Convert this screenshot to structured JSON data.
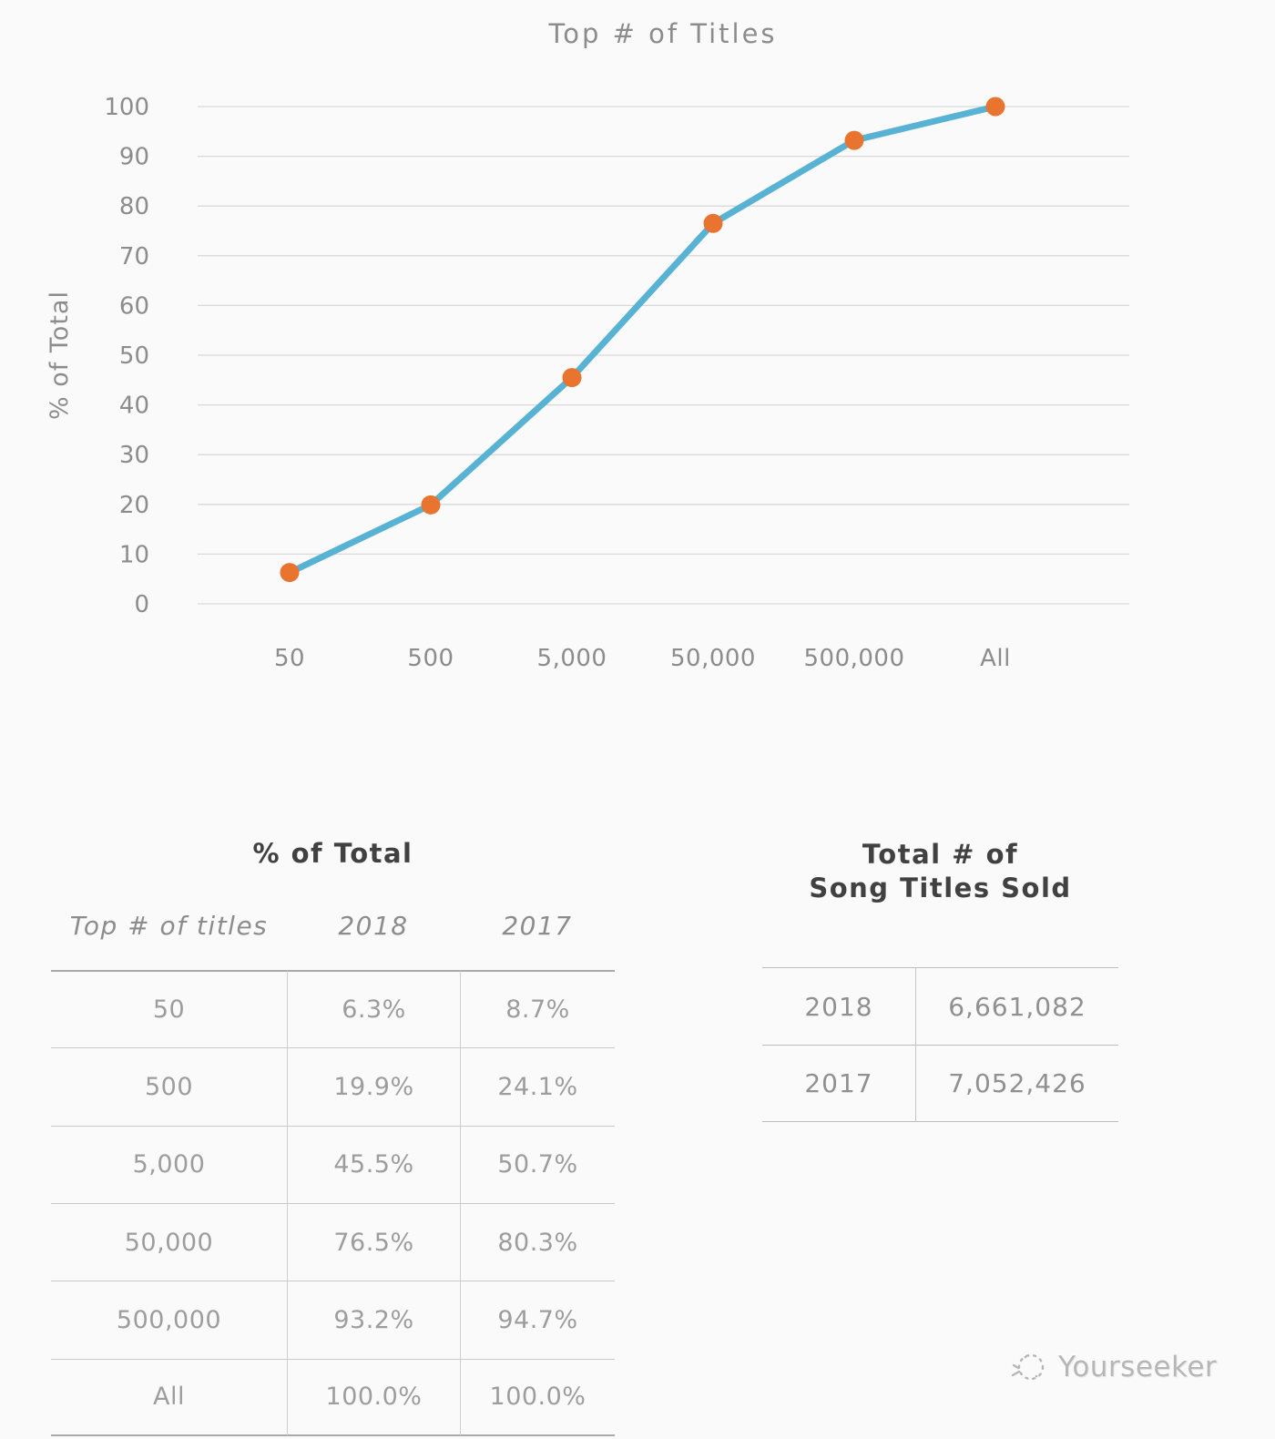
{
  "chart_data": {
    "type": "line",
    "title": "Top # of Titles",
    "categories": [
      "50",
      "500",
      "5,000",
      "50,000",
      "500,000",
      "All"
    ],
    "series": [
      {
        "name": "2018",
        "values": [
          6.3,
          19.9,
          45.5,
          76.5,
          93.2,
          100.0
        ]
      }
    ],
    "xlabel": "",
    "ylabel": "% of Total",
    "ylim": [
      0,
      100
    ],
    "ytick_step": 10,
    "grid": true,
    "legend": false
  },
  "chart_style": {
    "line_color": "#58b2d3",
    "marker_color": "#e8742f",
    "grid_color": "#d9d9d9",
    "text_color": "#8c8c8c"
  },
  "left_table": {
    "title": "% of Total",
    "headers": [
      "Top # of titles",
      "2018",
      "2017"
    ],
    "rows": [
      {
        "label": "50",
        "y2018": "6.3%",
        "y2017": "8.7%"
      },
      {
        "label": "500",
        "y2018": "19.9%",
        "y2017": "24.1%"
      },
      {
        "label": "5,000",
        "y2018": "45.5%",
        "y2017": "50.7%"
      },
      {
        "label": "50,000",
        "y2018": "76.5%",
        "y2017": "80.3%"
      },
      {
        "label": "500,000",
        "y2018": "93.2%",
        "y2017": "94.7%"
      },
      {
        "label": "All",
        "y2018": "100.0%",
        "y2017": "100.0%"
      }
    ]
  },
  "right_table": {
    "title_line1": "Total # of",
    "title_line2": "Song Titles Sold",
    "rows": [
      {
        "year": "2018",
        "value": "6,661,082"
      },
      {
        "year": "2017",
        "value": "7,052,426"
      }
    ]
  },
  "watermark": {
    "brand": "Yourseeker"
  }
}
